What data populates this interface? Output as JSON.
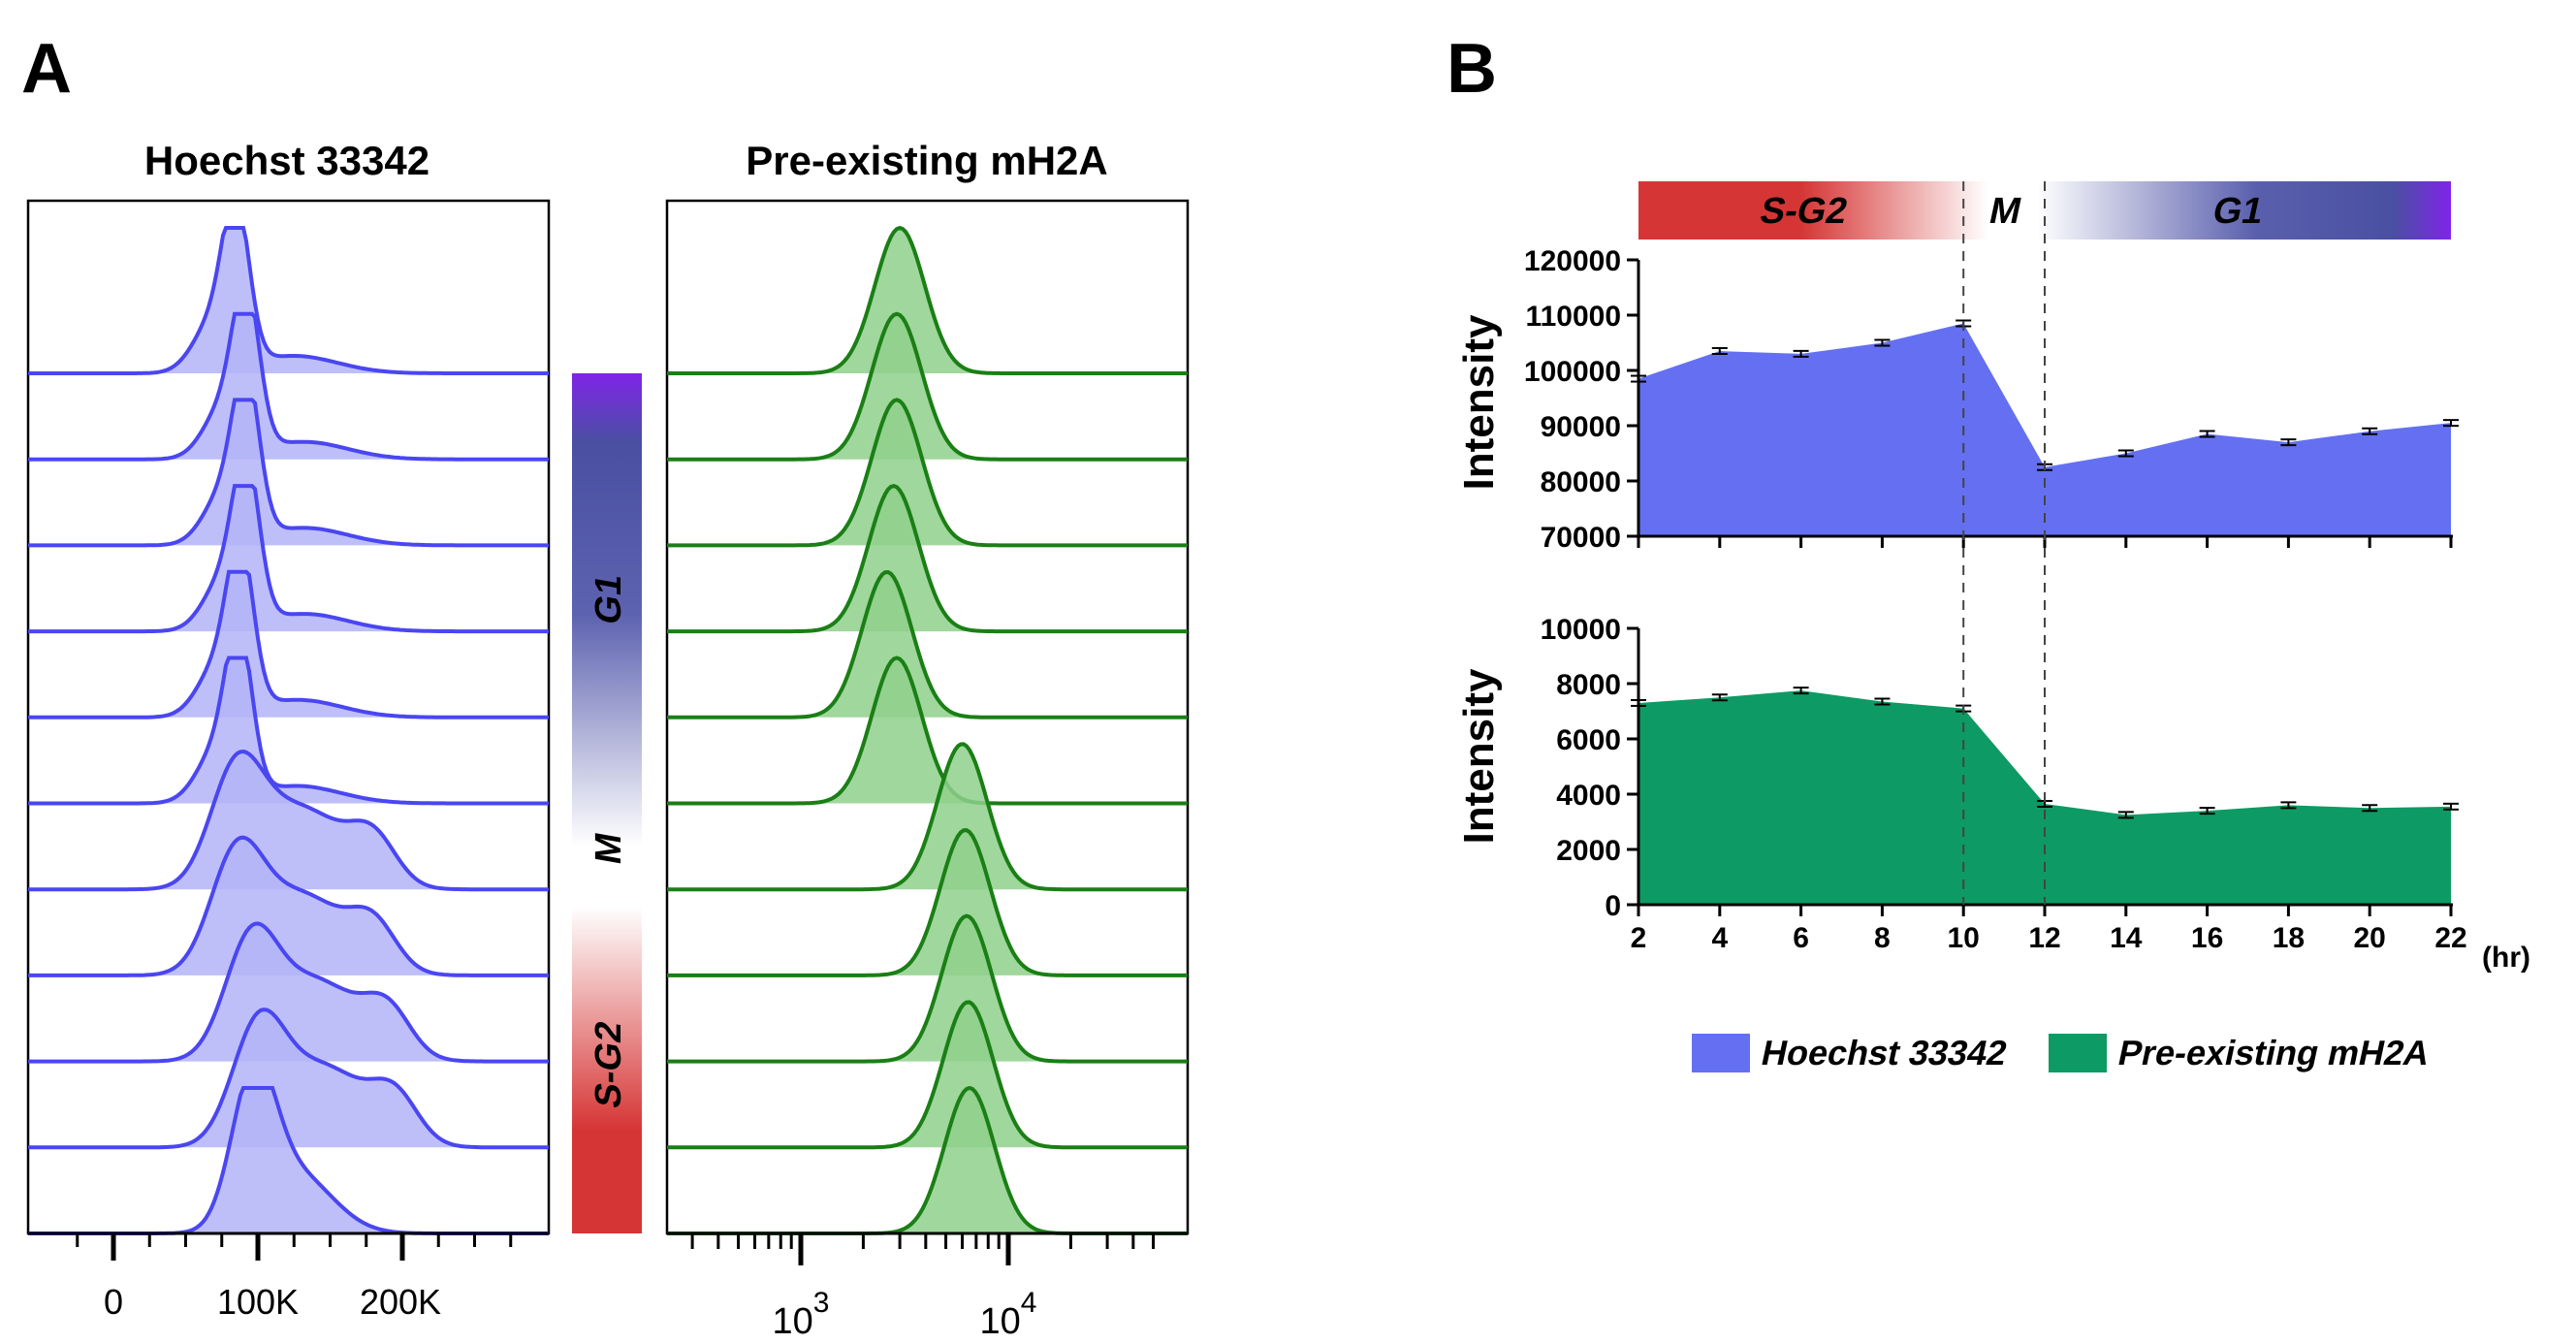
{
  "panel_a": {
    "label": "A",
    "hoechst": {
      "title": "Hoechst 33342",
      "ticks": [
        "0",
        "100K",
        "200K"
      ]
    },
    "mh2a": {
      "title": "Pre-existing mH2A",
      "ticks": [
        {
          "base": "10",
          "exp": "3"
        },
        {
          "base": "10",
          "exp": "4"
        }
      ]
    },
    "phase_bar": {
      "labels": [
        "G1",
        "M",
        "S-G2"
      ]
    }
  },
  "panel_b": {
    "label": "B",
    "phase_bar": {
      "labels": [
        "S-G2",
        "M",
        "G1"
      ]
    },
    "x_unit": "(hr)",
    "legend": [
      "Hoechst 33342",
      "Pre-existing mH2A"
    ]
  },
  "colors": {
    "hoechst_line": "#4a46f2",
    "hoechst_fill": "#b3b4f8",
    "mh2a_line": "#1a7f15",
    "mh2a_fill": "#8fd08c",
    "area_blue": "#6470f1",
    "area_green": "#0e9a64",
    "bar_red": "#d63535",
    "bar_navy": "#4a4fa2",
    "bar_purple": "#7f25e8"
  },
  "chart_data": [
    {
      "type": "area",
      "panel": "B-top",
      "series": [
        {
          "name": "Hoechst 33342",
          "color": "#6470f1"
        }
      ],
      "x": [
        2,
        4,
        6,
        8,
        10,
        12,
        14,
        16,
        18,
        20,
        22
      ],
      "values": [
        98500,
        103500,
        103000,
        105000,
        108500,
        82500,
        85000,
        88500,
        87000,
        89000,
        90500
      ],
      "ylabel": "Intensity",
      "ylim": [
        70000,
        120000
      ],
      "yticks": [
        70000,
        80000,
        90000,
        100000,
        110000,
        120000
      ],
      "xlim": [
        2,
        22
      ],
      "error_bars": true,
      "phase_boundaries": [
        10,
        12
      ]
    },
    {
      "type": "area",
      "panel": "B-bottom",
      "series": [
        {
          "name": "Pre-existing mH2A",
          "color": "#0e9a64"
        }
      ],
      "x": [
        2,
        4,
        6,
        8,
        10,
        12,
        14,
        16,
        18,
        20,
        22
      ],
      "values": [
        7300,
        7500,
        7750,
        7350,
        7100,
        3650,
        3250,
        3400,
        3600,
        3500,
        3550
      ],
      "ylabel": "Intensity",
      "ylim": [
        0,
        10000
      ],
      "yticks": [
        0,
        2000,
        4000,
        6000,
        8000,
        10000
      ],
      "xlabel": "(hr)",
      "xticks": [
        2,
        4,
        6,
        8,
        10,
        12,
        14,
        16,
        18,
        20,
        22
      ],
      "xlim": [
        2,
        22
      ],
      "error_bars": true,
      "phase_boundaries": [
        10,
        12
      ]
    },
    {
      "type": "line",
      "panel": "A-left",
      "description_free": true,
      "x_label_ticks": [
        "0",
        "100K",
        "200K"
      ],
      "x_ticks_values": [
        0,
        100000,
        200000
      ],
      "series": [
        {
          "peak": 85000,
          "spread": "narrow",
          "order": 1
        },
        {
          "peak": 92000,
          "spread": "narrow",
          "order": 2
        },
        {
          "peak": 92000,
          "spread": "narrow",
          "order": 3
        },
        {
          "peak": 92000,
          "spread": "narrow",
          "order": 4
        },
        {
          "peak": 88000,
          "spread": "narrow",
          "order": 5
        },
        {
          "peak": 87000,
          "spread": "narrow",
          "order": 6
        },
        {
          "peak": 85000,
          "spread": "wide",
          "order": 7
        },
        {
          "peak": 85000,
          "spread": "wide",
          "order": 8
        },
        {
          "peak": 95000,
          "spread": "wide",
          "order": 9
        },
        {
          "peak": 100000,
          "spread": "wide",
          "order": 10
        },
        {
          "peak": 97000,
          "spread": "medium",
          "order": 11
        }
      ]
    },
    {
      "type": "line",
      "panel": "A-right",
      "x_scale": "log",
      "x_label_ticks": [
        "10^3",
        "10^4"
      ],
      "series": [
        {
          "peak": 3000,
          "order": 1
        },
        {
          "peak": 2900,
          "order": 2
        },
        {
          "peak": 2900,
          "order": 3
        },
        {
          "peak": 2800,
          "order": 4
        },
        {
          "peak": 2600,
          "order": 5
        },
        {
          "peak": 2900,
          "order": 6
        },
        {
          "peak": 6000,
          "order": 7
        },
        {
          "peak": 6200,
          "order": 8
        },
        {
          "peak": 6300,
          "order": 9
        },
        {
          "peak": 6400,
          "order": 10
        },
        {
          "peak": 6500,
          "order": 11
        }
      ]
    }
  ]
}
